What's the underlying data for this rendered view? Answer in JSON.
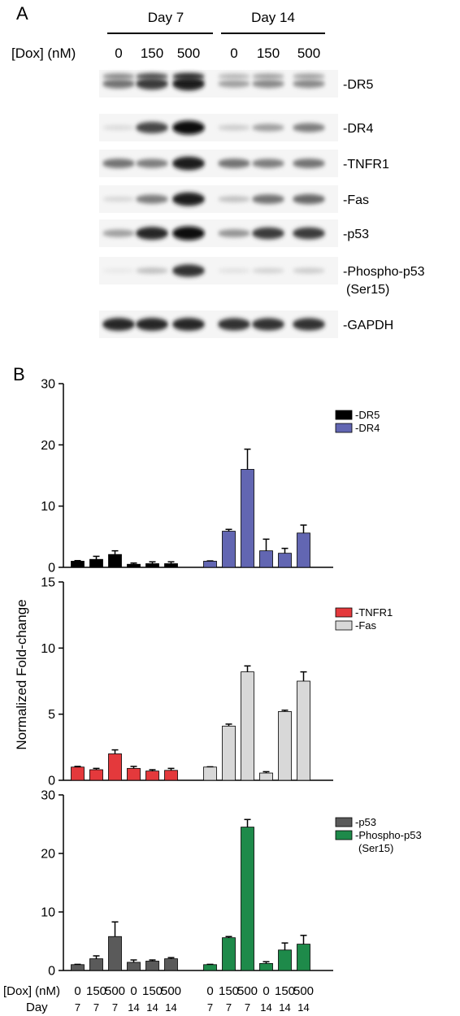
{
  "panel_a": {
    "letter": "A",
    "day_groups": [
      "Day 7",
      "Day 14"
    ],
    "dox_label": "[Dox] (nM)",
    "lanes": [
      "0",
      "150",
      "500",
      "0",
      "150",
      "500"
    ],
    "bands": [
      {
        "label": "-DR5",
        "extra": "",
        "intensity": [
          0.55,
          0.8,
          0.95,
          0.35,
          0.45,
          0.45
        ]
      },
      {
        "label": "-DR4",
        "extra": "",
        "intensity": [
          0.08,
          0.75,
          1.0,
          0.15,
          0.35,
          0.5
        ]
      },
      {
        "label": "-TNFR1",
        "extra": "",
        "intensity": [
          0.55,
          0.5,
          0.95,
          0.55,
          0.5,
          0.55
        ]
      },
      {
        "label": "-Fas",
        "extra": "",
        "intensity": [
          0.1,
          0.5,
          0.95,
          0.2,
          0.55,
          0.6
        ]
      },
      {
        "label": "-p53",
        "extra": "",
        "intensity": [
          0.35,
          0.9,
          1.0,
          0.4,
          0.8,
          0.8
        ]
      },
      {
        "label": "-Phospho-p53",
        "extra": "(Ser15)",
        "intensity": [
          0.02,
          0.2,
          0.85,
          0.05,
          0.12,
          0.15
        ]
      },
      {
        "label": "-GAPDH",
        "extra": "",
        "intensity": [
          0.9,
          0.9,
          0.9,
          0.85,
          0.85,
          0.85
        ]
      }
    ]
  },
  "panel_b": {
    "letter": "B",
    "ylabel": "Normalized Fold-change"
  },
  "categories": {
    "dox_label": "[Dox] (nM)",
    "day_label": "Day",
    "dox": [
      "0",
      "150",
      "500",
      "0",
      "150",
      "500",
      "0",
      "150",
      "500",
      "0",
      "150",
      "500"
    ],
    "day": [
      "7",
      "7",
      "7",
      "14",
      "14",
      "14",
      "7",
      "7",
      "7",
      "14",
      "14",
      "14"
    ]
  },
  "chart_data": [
    {
      "type": "bar",
      "ylim": [
        0,
        30
      ],
      "yticks": [
        "0",
        "10",
        "20",
        "30"
      ],
      "grid": false,
      "legend": "top-right",
      "series": [
        {
          "name": "-DR5",
          "color": "#000000",
          "values": [
            1.0,
            1.3,
            2.1,
            0.5,
            0.6,
            0.6
          ],
          "errors": [
            0.1,
            0.5,
            0.6,
            0.2,
            0.3,
            0.3
          ]
        },
        {
          "name": "-DR4",
          "color": "#6266b2",
          "values": [
            1.0,
            5.9,
            16.0,
            2.7,
            2.3,
            5.6
          ],
          "errors": [
            0.05,
            0.3,
            3.3,
            1.9,
            0.8,
            1.3
          ]
        }
      ]
    },
    {
      "type": "bar",
      "ylim": [
        0,
        15
      ],
      "yticks": [
        "0",
        "5",
        "10",
        "15"
      ],
      "grid": false,
      "legend": "top-right",
      "series": [
        {
          "name": "-TNFR1",
          "color": "#e4393c",
          "values": [
            1.0,
            0.8,
            2.0,
            0.9,
            0.7,
            0.75
          ],
          "errors": [
            0.05,
            0.1,
            0.3,
            0.15,
            0.1,
            0.15
          ]
        },
        {
          "name": "-Fas",
          "color": "#d8d8d8",
          "values": [
            1.0,
            4.1,
            8.2,
            0.55,
            5.2,
            7.5
          ],
          "errors": [
            0.02,
            0.15,
            0.45,
            0.1,
            0.1,
            0.7
          ]
        }
      ]
    },
    {
      "type": "bar",
      "ylim": [
        0,
        30
      ],
      "yticks": [
        "0",
        "10",
        "20",
        "30"
      ],
      "grid": false,
      "legend": "top-right",
      "series": [
        {
          "name": "-p53",
          "color": "#5a5a5a",
          "values": [
            1.0,
            2.0,
            5.8,
            1.4,
            1.6,
            2.0
          ],
          "errors": [
            0.05,
            0.5,
            2.5,
            0.4,
            0.2,
            0.2
          ]
        },
        {
          "name": "-Phospho-p53",
          "name_line2": "(Ser15)",
          "color": "#1e8a4a",
          "values": [
            1.0,
            5.6,
            24.5,
            1.2,
            3.5,
            4.5
          ],
          "errors": [
            0.05,
            0.2,
            1.3,
            0.3,
            1.2,
            1.5
          ]
        }
      ]
    }
  ]
}
